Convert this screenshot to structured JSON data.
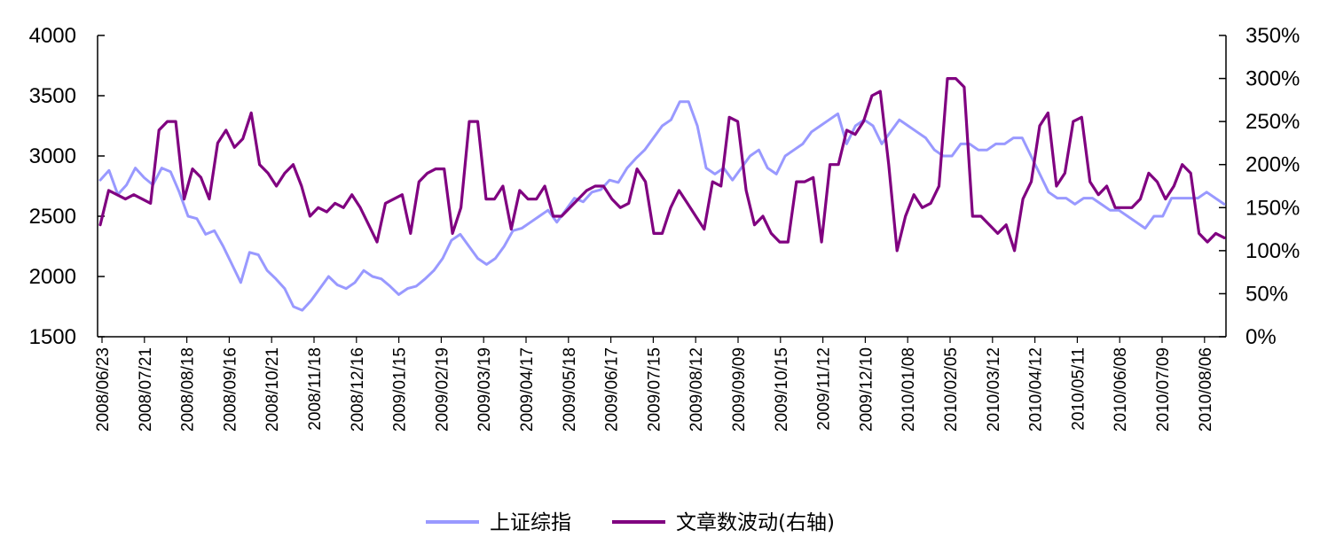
{
  "chart_data": {
    "type": "line",
    "title": "",
    "y_left": {
      "min": 1500,
      "max": 4000,
      "ticks": [
        4000,
        3500,
        3000,
        2500,
        2000,
        1500
      ]
    },
    "y_right": {
      "min": 0,
      "max": 350,
      "unit": "%",
      "ticks": [
        "350%",
        "300%",
        "250%",
        "200%",
        "150%",
        "100%",
        "50%",
        "0%"
      ]
    },
    "x_tick_labels": [
      "2008/06/23",
      "2008/07/21",
      "2008/08/18",
      "2008/09/16",
      "2008/10/21",
      "2008/11/18",
      "2008/12/16",
      "2009/01/15",
      "2009/02/19",
      "2009/03/19",
      "2009/04/17",
      "2009/05/18",
      "2009/06/17",
      "2009/07/15",
      "2009/08/12",
      "2009/09/09",
      "2009/10/15",
      "2009/11/12",
      "2009/12/10",
      "2010/01/08",
      "2010/02/05",
      "2010/03/12",
      "2010/04/12",
      "2010/05/11",
      "2010/06/08",
      "2010/07/09",
      "2010/08/06"
    ],
    "grid": false,
    "legend_position": "bottom",
    "series": [
      {
        "name": "上证综指",
        "axis": "left",
        "color": "#9999ff",
        "values": [
          2800,
          2880,
          2680,
          2760,
          2900,
          2820,
          2760,
          2900,
          2870,
          2700,
          2500,
          2480,
          2350,
          2380,
          2250,
          2100,
          1950,
          2200,
          2180,
          2050,
          1980,
          1900,
          1750,
          1720,
          1800,
          1900,
          2000,
          1930,
          1900,
          1950,
          2050,
          2000,
          1980,
          1920,
          1850,
          1900,
          1920,
          1980,
          2050,
          2150,
          2300,
          2350,
          2250,
          2150,
          2100,
          2150,
          2250,
          2380,
          2400,
          2450,
          2500,
          2550,
          2450,
          2550,
          2650,
          2620,
          2700,
          2720,
          2800,
          2780,
          2900,
          2980,
          3050,
          3150,
          3250,
          3300,
          3450,
          3450,
          3250,
          2900,
          2850,
          2900,
          2800,
          2900,
          3000,
          3050,
          2900,
          2850,
          3000,
          3050,
          3100,
          3200,
          3250,
          3300,
          3350,
          3100,
          3250,
          3300,
          3250,
          3100,
          3200,
          3300,
          3250,
          3200,
          3150,
          3050,
          3000,
          3000,
          3100,
          3100,
          3050,
          3050,
          3100,
          3100,
          3150,
          3150,
          3000,
          2850,
          2700,
          2650,
          2650,
          2600,
          2650,
          2650,
          2600,
          2550,
          2550,
          2500,
          2450,
          2400,
          2500,
          2500,
          2650,
          2650,
          2650,
          2650,
          2700,
          2650,
          2600
        ]
      },
      {
        "name": "文章数波动(右轴)",
        "axis": "right",
        "color": "#800080",
        "values": [
          130,
          170,
          165,
          160,
          165,
          160,
          155,
          240,
          250,
          250,
          160,
          195,
          185,
          160,
          225,
          240,
          220,
          230,
          260,
          200,
          190,
          175,
          190,
          200,
          175,
          140,
          150,
          145,
          155,
          150,
          165,
          150,
          130,
          110,
          155,
          160,
          165,
          120,
          180,
          190,
          195,
          195,
          120,
          150,
          250,
          250,
          160,
          160,
          175,
          125,
          170,
          160,
          160,
          175,
          140,
          140,
          150,
          160,
          170,
          175,
          175,
          160,
          150,
          155,
          195,
          180,
          120,
          120,
          150,
          170,
          155,
          140,
          125,
          180,
          175,
          255,
          250,
          170,
          130,
          140,
          120,
          110,
          110,
          180,
          180,
          185,
          110,
          200,
          200,
          240,
          235,
          250,
          280,
          285,
          200,
          100,
          140,
          165,
          150,
          155,
          175,
          300,
          300,
          290,
          140,
          140,
          130,
          120,
          130,
          100,
          160,
          180,
          245,
          260,
          175,
          190,
          250,
          255,
          180,
          165,
          175,
          150,
          150,
          150,
          160,
          190,
          180,
          160,
          175,
          200,
          190,
          120,
          110,
          120,
          115
        ]
      }
    ]
  }
}
